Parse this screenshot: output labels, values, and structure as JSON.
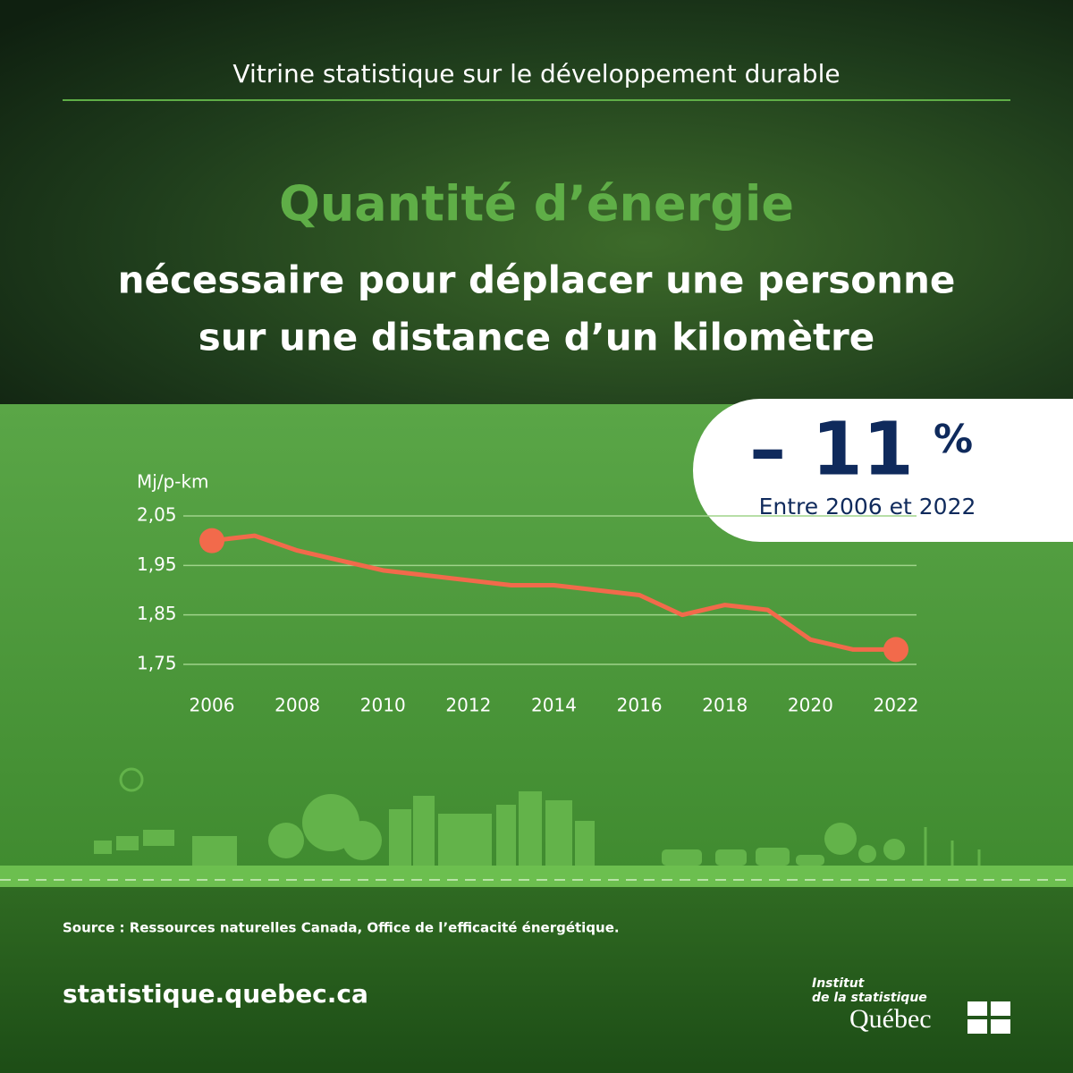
{
  "header": "Vitrine statistique sur le développement durable",
  "chart_data": {
    "type": "line",
    "title": "Quantité d’énergie",
    "subtitle": [
      "nécessaire pour déplacer une personne",
      "sur une distance d’un kilomètre"
    ],
    "y_label": "Mj/p-km",
    "x": [
      2006,
      2007,
      2008,
      2009,
      2010,
      2011,
      2012,
      2013,
      2014,
      2015,
      2016,
      2017,
      2018,
      2019,
      2020,
      2021,
      2022
    ],
    "series": [
      {
        "color": "#f26a4b",
        "values": [
          2.0,
          2.01,
          1.98,
          1.96,
          1.94,
          1.93,
          1.92,
          1.91,
          1.91,
          1.9,
          1.89,
          1.85,
          1.87,
          1.86,
          1.8,
          1.78,
          1.78
        ]
      }
    ],
    "xlim": [
      2006,
      2022
    ],
    "xticks": [
      2006,
      2008,
      2010,
      2012,
      2014,
      2016,
      2018,
      2020,
      2022
    ],
    "ylim": [
      1.75,
      2.05
    ],
    "yticks": [
      {
        "value": 1.75,
        "label": "1,75"
      },
      {
        "value": 1.85,
        "label": "1,85"
      },
      {
        "value": 1.95,
        "label": "1,95"
      },
      {
        "value": 2.05,
        "label": "2,05"
      }
    ],
    "grid": true,
    "callout": {
      "change": "– 11",
      "unit": "%",
      "period": "Entre 2006 et 2022"
    }
  },
  "source": "Source :  Ressources naturelles Canada, Office de l’efficacité énergétique.",
  "url": "statistique.quebec.ca",
  "logo": {
    "line1": "Institut",
    "line2": "de la statistique",
    "name": "Québec"
  }
}
